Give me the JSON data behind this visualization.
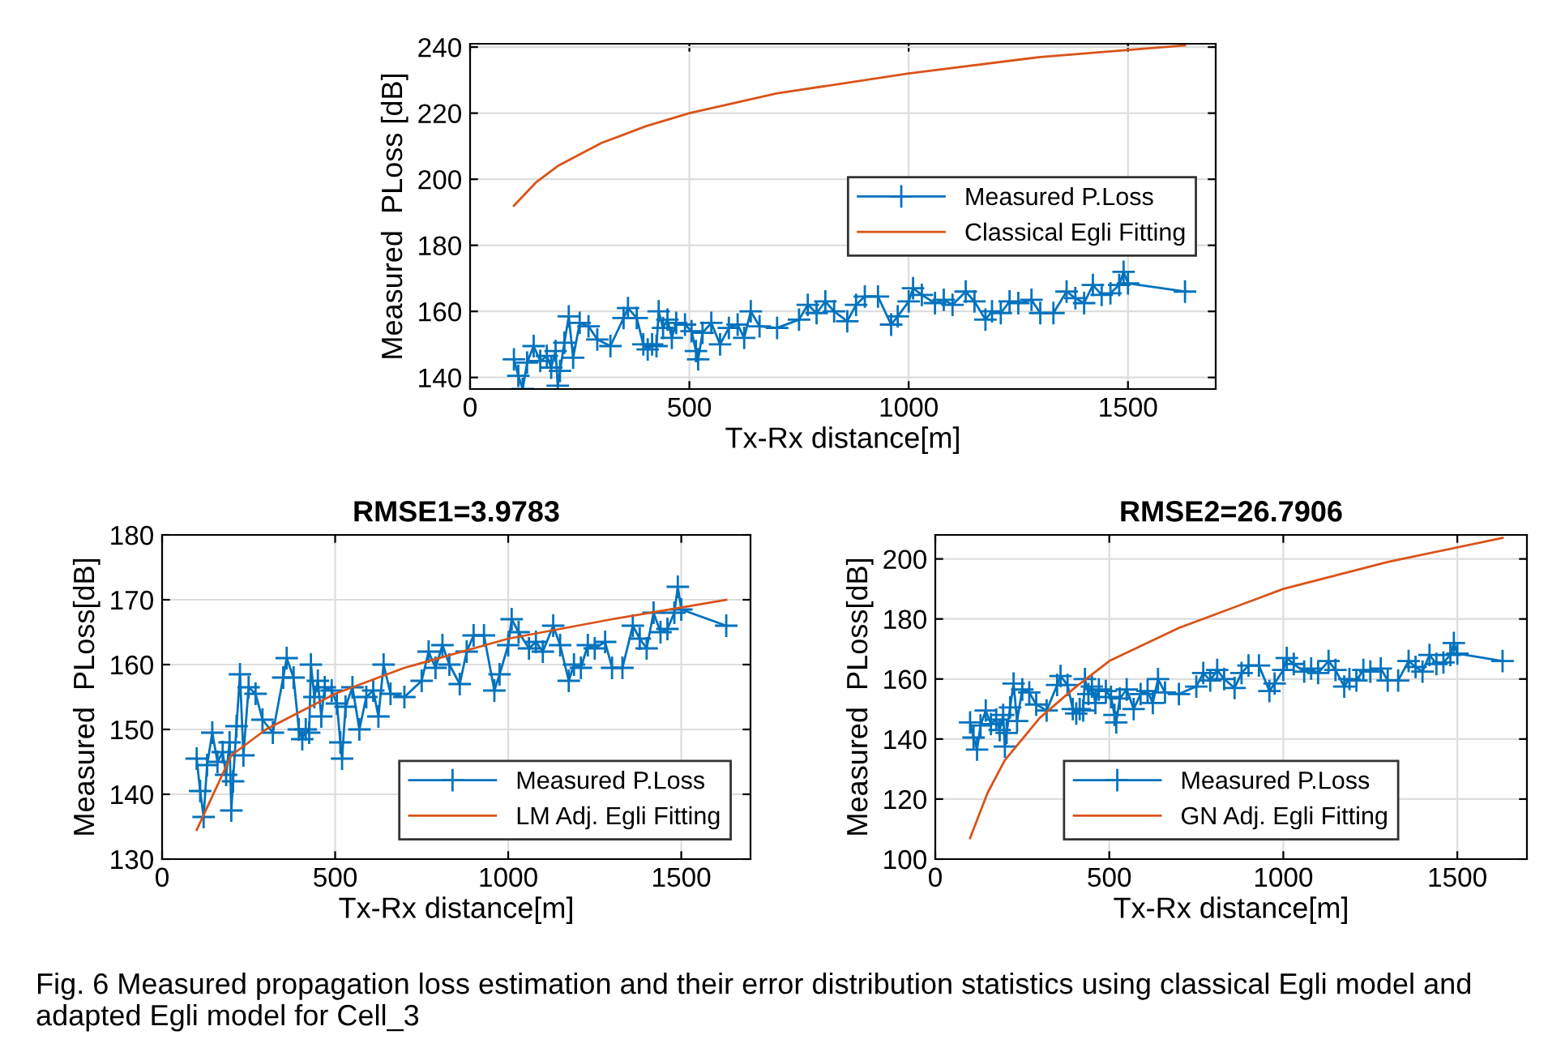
{
  "chart_data": [
    {
      "type": "line",
      "xlabel": "Tx-Rx distance[m]",
      "ylabel": "Measured  PLoss [dB]",
      "xlim": [
        0,
        1700
      ],
      "ylim": [
        136.5,
        241
      ],
      "xticks": [
        0,
        500,
        1000,
        1500
      ],
      "yticks": [
        140,
        160,
        180,
        200,
        220,
        240
      ],
      "grid": true,
      "legend": "right",
      "series": [
        {
          "name": "Measured P.Loss",
          "color": "#0072bd",
          "marker": "cross",
          "x": [
            100,
            110,
            120,
            130,
            145,
            160,
            175,
            185,
            195,
            200,
            205,
            215,
            225,
            235,
            250,
            270,
            290,
            320,
            350,
            360,
            380,
            395,
            405,
            415,
            425,
            430,
            440,
            450,
            460,
            470,
            490,
            505,
            515,
            520,
            530,
            550,
            570,
            590,
            610,
            625,
            640,
            660,
            700,
            750,
            770,
            790,
            810,
            830,
            860,
            880,
            900,
            930,
            960,
            975,
            1000,
            1010,
            1030,
            1060,
            1080,
            1100,
            1130,
            1150,
            1175,
            1190,
            1210,
            1230,
            1250,
            1280,
            1300,
            1330,
            1360,
            1380,
            1400,
            1420,
            1440,
            1460,
            1480,
            1490,
            1500,
            1630
          ],
          "values": [
            145.5,
            140.5,
            136.5,
            144.5,
            149.5,
            145,
            146.5,
            143,
            148,
            137.5,
            142,
            150.5,
            158.5,
            146,
            156.5,
            155.5,
            151.5,
            149.5,
            158,
            161,
            158,
            150,
            148.5,
            150,
            149.5,
            160,
            155,
            157.5,
            152,
            156.5,
            156,
            154,
            148,
            145.5,
            153.5,
            156.5,
            150,
            155,
            156,
            152,
            160,
            155.5,
            155,
            157.5,
            162,
            159.5,
            163,
            160,
            157,
            162,
            164.5,
            164.5,
            156,
            158.5,
            163,
            167,
            165,
            162.5,
            163.5,
            162,
            166,
            163,
            157.5,
            160,
            159.5,
            163,
            162.5,
            163.5,
            159.5,
            159.5,
            166,
            164,
            162.5,
            168,
            165,
            165.5,
            168,
            172,
            168.5,
            166
          ]
        },
        {
          "name": "Classical Egli Fitting",
          "color": "#d95319",
          "marker": "none",
          "x": [
            100,
            150,
            200,
            300,
            400,
            500,
            700,
            1000,
            1300,
            1630
          ],
          "values": [
            192,
            199,
            204,
            211,
            216,
            220,
            226,
            232,
            237,
            240.5
          ]
        }
      ]
    },
    {
      "type": "line",
      "title": "RMSE1=3.9783",
      "xlabel": "Tx-Rx distance[m]",
      "ylabel": "Measured  PLoss[dB]",
      "xlim": [
        0,
        1700
      ],
      "ylim": [
        130,
        180
      ],
      "xticks": [
        0,
        500,
        1000,
        1500
      ],
      "yticks": [
        130,
        140,
        150,
        160,
        170,
        180
      ],
      "grid": true,
      "legend": "bottom right",
      "series": [
        {
          "name": "Measured P.Loss",
          "color": "#0072bd",
          "marker": "cross",
          "x": [
            100,
            110,
            120,
            130,
            145,
            160,
            175,
            185,
            195,
            200,
            205,
            215,
            225,
            235,
            250,
            270,
            290,
            320,
            350,
            360,
            380,
            395,
            405,
            415,
            425,
            430,
            440,
            450,
            460,
            470,
            490,
            505,
            515,
            520,
            530,
            550,
            570,
            590,
            610,
            625,
            640,
            660,
            700,
            750,
            770,
            790,
            810,
            830,
            860,
            880,
            900,
            930,
            960,
            975,
            1000,
            1010,
            1030,
            1060,
            1080,
            1100,
            1130,
            1150,
            1175,
            1190,
            1210,
            1230,
            1250,
            1280,
            1300,
            1330,
            1360,
            1380,
            1400,
            1420,
            1440,
            1460,
            1480,
            1490,
            1500,
            1630
          ],
          "values": [
            145.5,
            140.5,
            136.5,
            144.5,
            149.5,
            145,
            146.5,
            143,
            148,
            137.5,
            142,
            150.5,
            158.5,
            146,
            156.5,
            155.5,
            151.5,
            149.5,
            158,
            161,
            158,
            150,
            148.5,
            150,
            149.5,
            160,
            155,
            157.5,
            152,
            156.5,
            156,
            154,
            148,
            145.5,
            153.5,
            156.5,
            150,
            155,
            156,
            152,
            160,
            155.5,
            155,
            157.5,
            162,
            159.5,
            163,
            160,
            157,
            162,
            164.5,
            164.5,
            156,
            158.5,
            163,
            167,
            165,
            162.5,
            163.5,
            162,
            166,
            163,
            157.5,
            160,
            159.5,
            163,
            162.5,
            163.5,
            159.5,
            159.5,
            166,
            164,
            162.5,
            168,
            165,
            165.5,
            168,
            172,
            168.5,
            166
          ]
        },
        {
          "name": "LM Adj. Egli Fitting",
          "color": "#d95319",
          "marker": "none",
          "x": [
            100,
            200,
            300,
            500,
            700,
            1000,
            1300,
            1630
          ],
          "values": [
            134.5,
            146,
            150,
            155.5,
            159.5,
            164,
            167,
            170
          ]
        }
      ]
    },
    {
      "type": "line",
      "title": "RMSE2=26.7906",
      "xlabel": "Tx-Rx distance[m]",
      "ylabel": "Measured  PLoss[dB]",
      "xlim": [
        0,
        1700
      ],
      "ylim": [
        100,
        208
      ],
      "xticks": [
        0,
        500,
        1000,
        1500
      ],
      "yticks": [
        100,
        120,
        140,
        160,
        180,
        200
      ],
      "grid": true,
      "legend": "bottom",
      "annotations": [
        "Fig. 6 Measured propagation loss estimation and their error distribution statistics using classical Egli model and adapted Egli model for Cell_3"
      ],
      "series": [
        {
          "name": "Measured P.Loss",
          "color": "#0072bd",
          "marker": "cross",
          "x": [
            100,
            110,
            120,
            130,
            145,
            160,
            175,
            185,
            195,
            200,
            205,
            215,
            225,
            235,
            250,
            270,
            290,
            320,
            350,
            360,
            380,
            395,
            405,
            415,
            425,
            430,
            440,
            450,
            460,
            470,
            490,
            505,
            515,
            520,
            530,
            550,
            570,
            590,
            610,
            625,
            640,
            660,
            700,
            750,
            770,
            790,
            810,
            830,
            860,
            880,
            900,
            930,
            960,
            975,
            1000,
            1010,
            1030,
            1060,
            1080,
            1100,
            1130,
            1150,
            1175,
            1190,
            1210,
            1230,
            1250,
            1280,
            1300,
            1330,
            1360,
            1380,
            1400,
            1420,
            1440,
            1460,
            1480,
            1490,
            1500,
            1630
          ],
          "values": [
            145.5,
            140.5,
            136.5,
            144.5,
            149.5,
            145,
            146.5,
            143,
            148,
            137.5,
            142,
            150.5,
            158.5,
            146,
            156.5,
            155.5,
            151.5,
            149.5,
            158,
            161,
            158,
            150,
            148.5,
            150,
            149.5,
            160,
            155,
            157.5,
            152,
            156.5,
            156,
            154,
            148,
            145.5,
            153.5,
            156.5,
            150,
            155,
            156,
            152,
            160,
            155.5,
            155,
            157.5,
            162,
            159.5,
            163,
            160,
            157,
            162,
            164.5,
            164.5,
            156,
            158.5,
            163,
            167,
            165,
            162.5,
            163.5,
            162,
            166,
            163,
            157.5,
            160,
            159.5,
            163,
            162.5,
            163.5,
            159.5,
            159.5,
            166,
            164,
            162.5,
            168,
            165,
            165.5,
            168,
            172,
            168.5,
            166
          ]
        },
        {
          "name": "GN Adj. Egli Fitting",
          "color": "#d95319",
          "marker": "none",
          "x": [
            100,
            150,
            200,
            300,
            400,
            500,
            700,
            1000,
            1300,
            1630
          ],
          "values": [
            107,
            122,
            133,
            147,
            157,
            166,
            177,
            190,
            199,
            207
          ]
        }
      ]
    }
  ]
}
